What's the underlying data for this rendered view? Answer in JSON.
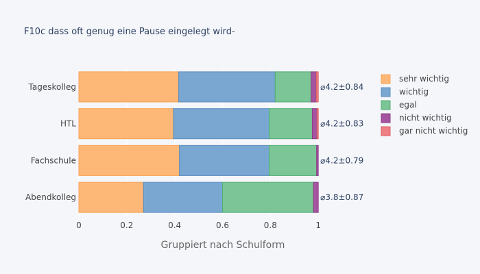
{
  "chart_data": {
    "type": "bar",
    "orientation": "horizontal",
    "stacked": true,
    "title": "F10c dass oft genug eine Pause eingelegt wird-",
    "xlabel": "Gruppiert nach Schulform",
    "ylabel": "",
    "xlim": [
      0,
      1.2
    ],
    "xticks": [
      "0",
      "0.2",
      "0.4",
      "0.6",
      "0.8",
      "1"
    ],
    "grid": true,
    "legend_position": "right",
    "categories": [
      "Tageskolleg",
      "HTL",
      "Fachschule",
      "Abendkolleg"
    ],
    "annotations": [
      "⌀4.2±0.84",
      "⌀4.2±0.83",
      "⌀4.2±0.79",
      "⌀3.8±0.87"
    ],
    "series": [
      {
        "name": "sehr wichtig",
        "color": "#fdb777",
        "border": "#f6a356",
        "values": [
          0.417,
          0.395,
          0.42,
          0.27
        ]
      },
      {
        "name": "wichtig",
        "color": "#7aa7d1",
        "border": "#5b8cc0",
        "values": [
          0.403,
          0.4,
          0.375,
          0.33
        ]
      },
      {
        "name": "egal",
        "color": "#7cc596",
        "border": "#4fae72",
        "values": [
          0.15,
          0.18,
          0.198,
          0.38
        ]
      },
      {
        "name": "nicht wichtig",
        "color": "#a5559f",
        "border": "#8b3c87",
        "values": [
          0.022,
          0.02,
          0.007,
          0.02
        ]
      },
      {
        "name": "gar nicht wichtig",
        "color": "#ee7f84",
        "border": "#d95e63",
        "values": [
          0.008,
          0.005,
          0.0,
          0.0
        ]
      }
    ]
  }
}
